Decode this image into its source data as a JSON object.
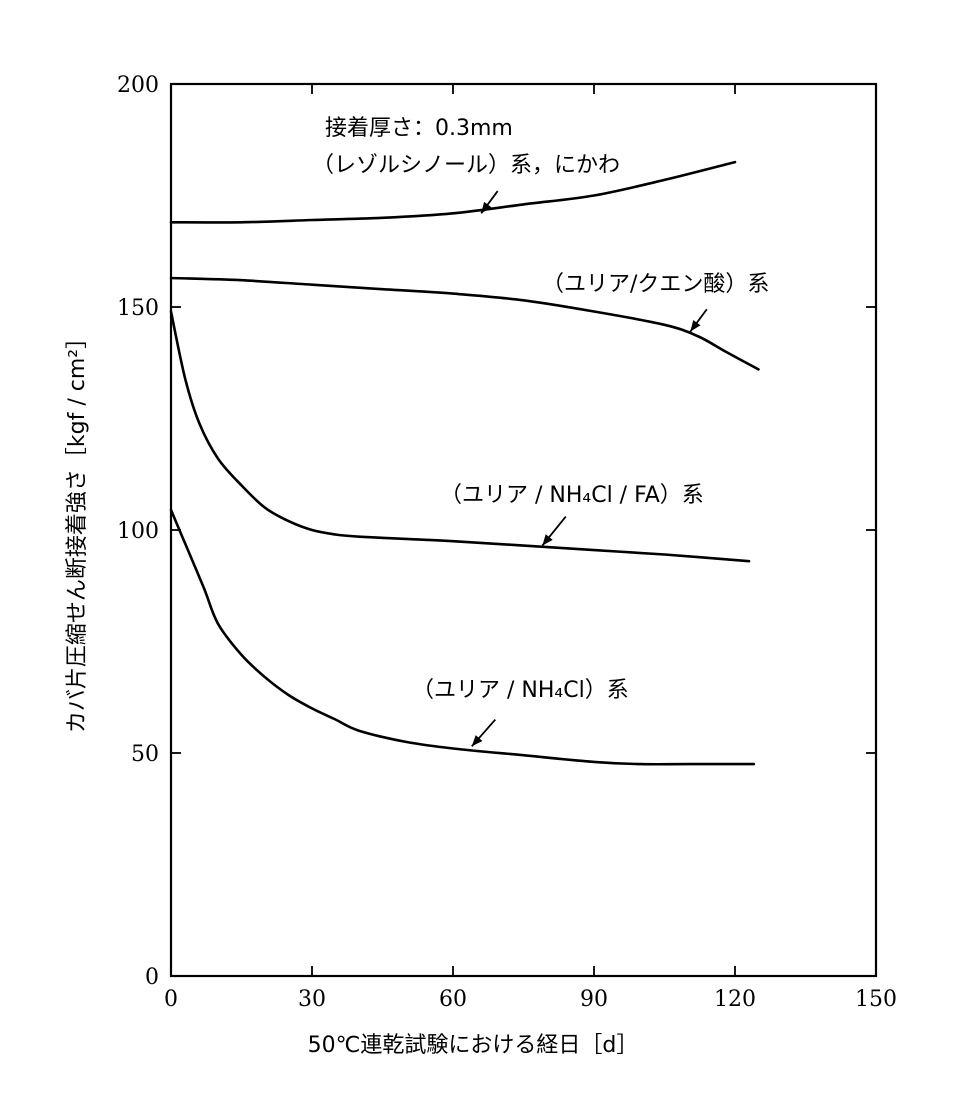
{
  "chart_data": {
    "type": "line",
    "xlabel": "50℃連乾試験における経日［d］",
    "ylabel": "カバ片圧縮せん断接着強さ［kgf / cm²］",
    "xlim": [
      0,
      150
    ],
    "ylim": [
      0,
      200
    ],
    "xticks": [
      0,
      30,
      60,
      90,
      120,
      150
    ],
    "yticks": [
      0,
      50,
      100,
      150,
      200
    ],
    "xtick_labels": [
      "0",
      "30",
      "60",
      "90",
      "120",
      "150"
    ],
    "ytick_labels": [
      "0",
      "50",
      "100",
      "150",
      "200"
    ],
    "grid": false,
    "annotations": {
      "thickness": "接着厚さ：0.3mm"
    },
    "series": [
      {
        "name": "（レゾルシノール）系，にかわ",
        "x": [
          0,
          15,
          30,
          45,
          60,
          75,
          90,
          105,
          120
        ],
        "values": [
          169,
          169,
          169.5,
          170,
          171,
          173,
          175,
          178.5,
          182.5
        ]
      },
      {
        "name": "（ユリア/クエン酸）系",
        "x": [
          0,
          15,
          30,
          45,
          60,
          75,
          90,
          105,
          112,
          118,
          125
        ],
        "values": [
          156.5,
          156,
          155,
          154,
          153,
          151.5,
          149,
          146,
          143.5,
          140,
          136
        ]
      },
      {
        "name": "（ユリア / NH₄Cl / FA）系",
        "x": [
          0,
          3,
          6,
          10,
          15,
          20,
          25,
          30,
          35,
          40,
          50,
          60,
          75,
          90,
          105,
          123
        ],
        "values": [
          149,
          134,
          124,
          116,
          110,
          105,
          102,
          100,
          99,
          98.5,
          98,
          97.5,
          96.5,
          95.5,
          94.5,
          93
        ]
      },
      {
        "name": "（ユリア / NH₄Cl）系",
        "x": [
          0,
          3,
          7,
          10,
          15,
          20,
          25,
          30,
          35,
          40,
          50,
          60,
          75,
          90,
          100,
          110,
          124
        ],
        "values": [
          104.5,
          97,
          87,
          79,
          72,
          67,
          63,
          60,
          57.5,
          55,
          52.5,
          51,
          49.5,
          48,
          47.5,
          47.5,
          47.5
        ]
      }
    ]
  }
}
